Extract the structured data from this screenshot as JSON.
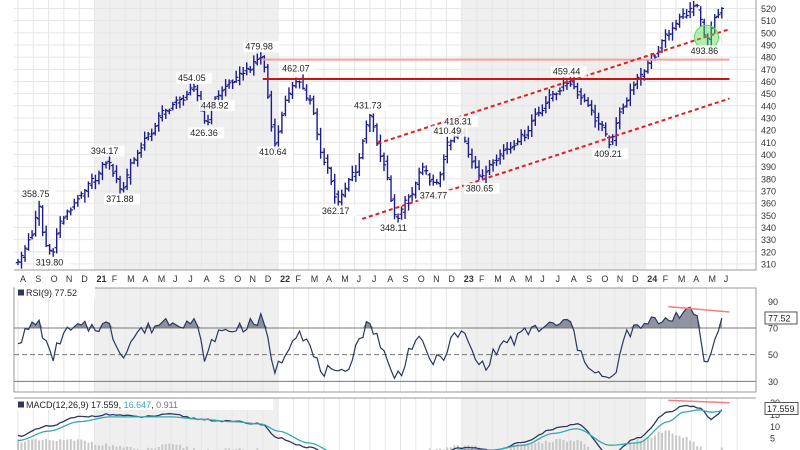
{
  "chart_data": [
    {
      "type": "ohlc",
      "panel": "price",
      "y_ticks": [
        310,
        320,
        330,
        340,
        350,
        360,
        370,
        380,
        390,
        400,
        410,
        420,
        430,
        440,
        450,
        460,
        470,
        480,
        490,
        500,
        510,
        520
      ],
      "ylim": [
        305,
        527
      ],
      "x_tick_labels": [
        "A",
        "S",
        "O",
        "N",
        "D",
        "21",
        "F",
        "M",
        "A",
        "M",
        "J",
        "J",
        "A",
        "S",
        "O",
        "N",
        "D",
        "22",
        "F",
        "M",
        "A",
        "M",
        "J",
        "J",
        "A",
        "S",
        "O",
        "N",
        "D",
        "23",
        "F",
        "M",
        "A",
        "M",
        "J",
        "J",
        "A",
        "S",
        "O",
        "N",
        "D",
        "24",
        "F",
        "M",
        "A",
        "M",
        "J"
      ],
      "year_labels": [
        "21",
        "22",
        "23",
        "24"
      ],
      "anchors": [
        {
          "m": 0.0,
          "v": 313
        },
        {
          "m": 1.0,
          "v": 335
        },
        {
          "m": 1.3,
          "v": 358.75
        },
        {
          "m": 1.8,
          "v": 325
        },
        {
          "m": 2.2,
          "v": 319.8
        },
        {
          "m": 2.8,
          "v": 345
        },
        {
          "m": 3.2,
          "v": 352
        },
        {
          "m": 4.0,
          "v": 365
        },
        {
          "m": 5.0,
          "v": 380
        },
        {
          "m": 5.8,
          "v": 394.17
        },
        {
          "m": 6.8,
          "v": 371.88
        },
        {
          "m": 7.5,
          "v": 396
        },
        {
          "m": 8.5,
          "v": 415
        },
        {
          "m": 9.5,
          "v": 435
        },
        {
          "m": 10.5,
          "v": 444
        },
        {
          "m": 11.5,
          "v": 454.05
        },
        {
          "m": 12.3,
          "v": 426.36
        },
        {
          "m": 13.0,
          "v": 448.92
        },
        {
          "m": 14.0,
          "v": 460
        },
        {
          "m": 15.0,
          "v": 470
        },
        {
          "m": 15.9,
          "v": 479.98
        },
        {
          "m": 16.8,
          "v": 410.64
        },
        {
          "m": 17.6,
          "v": 448
        },
        {
          "m": 18.3,
          "v": 462.07
        },
        {
          "m": 19.0,
          "v": 445
        },
        {
          "m": 20.0,
          "v": 395
        },
        {
          "m": 20.9,
          "v": 362.17
        },
        {
          "m": 22.0,
          "v": 385
        },
        {
          "m": 23.0,
          "v": 431.73
        },
        {
          "m": 23.8,
          "v": 395
        },
        {
          "m": 24.7,
          "v": 348.11
        },
        {
          "m": 25.6,
          "v": 365
        },
        {
          "m": 26.4,
          "v": 388
        },
        {
          "m": 27.3,
          "v": 374.77
        },
        {
          "m": 28.2,
          "v": 410.49
        },
        {
          "m": 28.9,
          "v": 418.31
        },
        {
          "m": 29.7,
          "v": 395
        },
        {
          "m": 30.3,
          "v": 380.65
        },
        {
          "m": 31.0,
          "v": 395
        },
        {
          "m": 32.0,
          "v": 405
        },
        {
          "m": 33.0,
          "v": 415
        },
        {
          "m": 34.0,
          "v": 435
        },
        {
          "m": 35.0,
          "v": 450
        },
        {
          "m": 36.0,
          "v": 459.44
        },
        {
          "m": 37.0,
          "v": 445
        },
        {
          "m": 38.0,
          "v": 425
        },
        {
          "m": 38.7,
          "v": 409.21
        },
        {
          "m": 39.5,
          "v": 440
        },
        {
          "m": 40.5,
          "v": 462
        },
        {
          "m": 41.5,
          "v": 480
        },
        {
          "m": 42.5,
          "v": 500
        },
        {
          "m": 43.5,
          "v": 515
        },
        {
          "m": 44.3,
          "v": 522
        },
        {
          "m": 45.0,
          "v": 493.86
        },
        {
          "m": 45.7,
          "v": 515
        },
        {
          "m": 46.2,
          "v": 522
        }
      ],
      "annotations": [
        {
          "label": "358.75",
          "m": 1.3,
          "v": 358.75,
          "pos": "above"
        },
        {
          "label": "319.80",
          "m": 2.2,
          "v": 319.8,
          "pos": "below"
        },
        {
          "label": "394.17",
          "m": 5.8,
          "v": 394.17,
          "pos": "above"
        },
        {
          "label": "371.88",
          "m": 6.8,
          "v": 371.88,
          "pos": "below"
        },
        {
          "label": "454.05",
          "m": 11.5,
          "v": 454.05,
          "pos": "above"
        },
        {
          "label": "426.36",
          "m": 12.3,
          "v": 426.36,
          "pos": "below"
        },
        {
          "label": "448.92",
          "m": 13.0,
          "v": 448.92,
          "pos": "below"
        },
        {
          "label": "479.98",
          "m": 15.9,
          "v": 479.98,
          "pos": "above"
        },
        {
          "label": "410.64",
          "m": 16.8,
          "v": 410.64,
          "pos": "below"
        },
        {
          "label": "462.07",
          "m": 18.3,
          "v": 462.07,
          "pos": "above"
        },
        {
          "label": "362.17",
          "m": 20.9,
          "v": 362.17,
          "pos": "below"
        },
        {
          "label": "431.73",
          "m": 23.0,
          "v": 431.73,
          "pos": "above"
        },
        {
          "label": "348.11",
          "m": 24.7,
          "v": 348.11,
          "pos": "below"
        },
        {
          "label": "374.77",
          "m": 27.3,
          "v": 374.77,
          "pos": "below"
        },
        {
          "label": "410.49",
          "m": 28.2,
          "v": 410.49,
          "pos": "above"
        },
        {
          "label": "418.31",
          "m": 28.9,
          "v": 418.31,
          "pos": "above"
        },
        {
          "label": "380.65",
          "m": 30.3,
          "v": 380.65,
          "pos": "below"
        },
        {
          "label": "459.44",
          "m": 36.0,
          "v": 459.44,
          "pos": "above"
        },
        {
          "label": "409.21",
          "m": 38.7,
          "v": 409.21,
          "pos": "below"
        },
        {
          "label": "493.86",
          "m": 45.0,
          "v": 493.86,
          "pos": "below"
        }
      ],
      "horizontal_lines": [
        {
          "v": 478,
          "m_start": 16.0,
          "m_end": 46.5,
          "color": "#f4a0a0"
        },
        {
          "v": 462,
          "m_start": 16.0,
          "m_end": 46.5,
          "color": "#c81414"
        }
      ],
      "channel_lines": [
        {
          "m1": 22.5,
          "v1": 347,
          "m2": 46.5,
          "v2": 446,
          "color": "#e02020"
        },
        {
          "m1": 23.5,
          "v1": 409,
          "m2": 46.5,
          "v2": 503,
          "color": "#e02020"
        }
      ],
      "highlight_circle": {
        "m": 45.0,
        "v": 493.86,
        "color": "#55dd55"
      },
      "series_color": "#1c1c8c"
    },
    {
      "type": "line",
      "panel": "rsi",
      "legend": "RSI(9) 77.52",
      "current_value": "77.52",
      "y_ticks": [
        30,
        50,
        70,
        90
      ],
      "ylim": [
        22,
        100
      ],
      "reference_levels": [
        30,
        50,
        70
      ],
      "anchors": [
        {
          "m": 0.0,
          "v": 62
        },
        {
          "m": 1.3,
          "v": 74
        },
        {
          "m": 2.2,
          "v": 48
        },
        {
          "m": 3.0,
          "v": 66
        },
        {
          "m": 4.0,
          "v": 70
        },
        {
          "m": 5.8,
          "v": 72
        },
        {
          "m": 6.8,
          "v": 52
        },
        {
          "m": 8.0,
          "v": 68
        },
        {
          "m": 10.0,
          "v": 76
        },
        {
          "m": 11.5,
          "v": 74
        },
        {
          "m": 12.3,
          "v": 48
        },
        {
          "m": 13.0,
          "v": 66
        },
        {
          "m": 15.0,
          "v": 72
        },
        {
          "m": 15.9,
          "v": 76
        },
        {
          "m": 16.8,
          "v": 40
        },
        {
          "m": 18.3,
          "v": 68
        },
        {
          "m": 20.0,
          "v": 38
        },
        {
          "m": 20.9,
          "v": 33
        },
        {
          "m": 23.0,
          "v": 72
        },
        {
          "m": 24.7,
          "v": 34
        },
        {
          "m": 26.0,
          "v": 60
        },
        {
          "m": 27.3,
          "v": 45
        },
        {
          "m": 28.9,
          "v": 66
        },
        {
          "m": 30.3,
          "v": 42
        },
        {
          "m": 32.0,
          "v": 60
        },
        {
          "m": 34.0,
          "v": 70
        },
        {
          "m": 36.0,
          "v": 74
        },
        {
          "m": 37.0,
          "v": 45
        },
        {
          "m": 38.7,
          "v": 30
        },
        {
          "m": 40.0,
          "v": 68
        },
        {
          "m": 42.0,
          "v": 76
        },
        {
          "m": 43.5,
          "v": 82
        },
        {
          "m": 44.3,
          "v": 80
        },
        {
          "m": 45.0,
          "v": 42
        },
        {
          "m": 45.7,
          "v": 70
        },
        {
          "m": 46.2,
          "v": 77.52
        }
      ],
      "divergence_line": {
        "m1": 42.5,
        "v1": 86,
        "m2": 46.5,
        "v2": 82,
        "color": "#f08080"
      },
      "shade_above": 70,
      "series_color": "#2a3760"
    },
    {
      "type": "line",
      "panel": "macd",
      "legend": "MACD(12,26,9) 17.559, 16.647, 0.911",
      "legend_parts": [
        "MACD(12,26,9) 17.559",
        "16.647",
        "0.911"
      ],
      "current_value": "17.559",
      "y_ticks": [
        5,
        10,
        15,
        20
      ],
      "ylim": [
        0,
        22
      ],
      "series": [
        {
          "name": "MACD",
          "color": "#2a3760",
          "anchors": [
            {
              "m": 0.0,
              "v": 6
            },
            {
              "m": 2.0,
              "v": 10
            },
            {
              "m": 4.0,
              "v": 14
            },
            {
              "m": 6.0,
              "v": 15
            },
            {
              "m": 8.0,
              "v": 14
            },
            {
              "m": 10.0,
              "v": 15
            },
            {
              "m": 12.0,
              "v": 13
            },
            {
              "m": 14.0,
              "v": 12
            },
            {
              "m": 15.9,
              "v": 11
            },
            {
              "m": 17.0,
              "v": 5
            },
            {
              "m": 19.0,
              "v": 1
            },
            {
              "m": 21.0,
              "v": -5
            },
            {
              "m": 23.0,
              "v": -4
            },
            {
              "m": 25.0,
              "v": -8
            },
            {
              "m": 27.0,
              "v": -3
            },
            {
              "m": 29.0,
              "v": 1
            },
            {
              "m": 31.0,
              "v": 0
            },
            {
              "m": 33.0,
              "v": 3
            },
            {
              "m": 35.0,
              "v": 9
            },
            {
              "m": 36.5,
              "v": 11
            },
            {
              "m": 38.7,
              "v": -2
            },
            {
              "m": 40.5,
              "v": 5
            },
            {
              "m": 42.5,
              "v": 16
            },
            {
              "m": 43.5,
              "v": 19
            },
            {
              "m": 44.5,
              "v": 18
            },
            {
              "m": 45.3,
              "v": 13
            },
            {
              "m": 46.2,
              "v": 17.559
            }
          ]
        },
        {
          "name": "Signal",
          "color": "#3aa8b0",
          "anchors": [
            {
              "m": 0.0,
              "v": 4
            },
            {
              "m": 2.0,
              "v": 8
            },
            {
              "m": 4.0,
              "v": 12
            },
            {
              "m": 6.0,
              "v": 14
            },
            {
              "m": 8.0,
              "v": 14
            },
            {
              "m": 10.0,
              "v": 14
            },
            {
              "m": 12.0,
              "v": 13
            },
            {
              "m": 14.0,
              "v": 12
            },
            {
              "m": 15.9,
              "v": 11
            },
            {
              "m": 17.0,
              "v": 8
            },
            {
              "m": 19.0,
              "v": 3
            },
            {
              "m": 21.0,
              "v": -2
            },
            {
              "m": 23.0,
              "v": -3
            },
            {
              "m": 25.0,
              "v": -5
            },
            {
              "m": 27.0,
              "v": -3
            },
            {
              "m": 29.0,
              "v": 0
            },
            {
              "m": 31.0,
              "v": 0
            },
            {
              "m": 33.0,
              "v": 2
            },
            {
              "m": 35.0,
              "v": 7
            },
            {
              "m": 36.5,
              "v": 9
            },
            {
              "m": 38.7,
              "v": 2
            },
            {
              "m": 40.5,
              "v": 3
            },
            {
              "m": 42.5,
              "v": 12
            },
            {
              "m": 43.5,
              "v": 16
            },
            {
              "m": 44.5,
              "v": 17
            },
            {
              "m": 45.3,
              "v": 16
            },
            {
              "m": 46.2,
              "v": 16.647
            }
          ]
        }
      ],
      "divergence_line": {
        "m1": 42.5,
        "v1": 21,
        "m2": 46.5,
        "v2": 20,
        "color": "#f08080"
      },
      "histogram_color": "#c8c8c8"
    }
  ],
  "colors": {
    "grid": "#e6e6e6",
    "shade": "#efefef",
    "axis_text": "#333333",
    "frame": "#999999",
    "value_box": "#ffffff"
  }
}
